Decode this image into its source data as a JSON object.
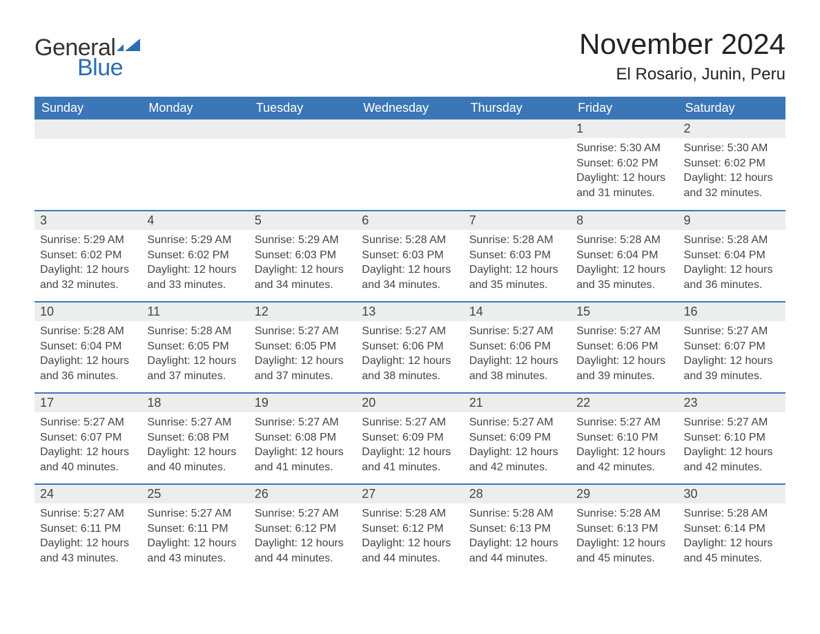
{
  "brand": {
    "part1": "General",
    "part2": "Blue",
    "flag_color": "#2a6db5",
    "text_color": "#333333"
  },
  "title": "November 2024",
  "location": "El Rosario, Junin, Peru",
  "colors": {
    "header_bg": "#3b77b7",
    "header_text": "#ffffff",
    "daybar_bg": "#eceeee",
    "body_text": "#444444",
    "row_border": "#3b77b7",
    "page_bg": "#ffffff"
  },
  "fonts": {
    "title_size": 42,
    "location_size": 24,
    "header_size": 18,
    "body_size": 16
  },
  "day_headers": [
    "Sunday",
    "Monday",
    "Tuesday",
    "Wednesday",
    "Thursday",
    "Friday",
    "Saturday"
  ],
  "labels": {
    "sunrise": "Sunrise:",
    "sunset": "Sunset:",
    "daylight_prefix": "Daylight:"
  },
  "weeks": [
    [
      null,
      null,
      null,
      null,
      null,
      {
        "n": "1",
        "sunrise": "5:30 AM",
        "sunset": "6:02 PM",
        "daylight": "12 hours and 31 minutes."
      },
      {
        "n": "2",
        "sunrise": "5:30 AM",
        "sunset": "6:02 PM",
        "daylight": "12 hours and 32 minutes."
      }
    ],
    [
      {
        "n": "3",
        "sunrise": "5:29 AM",
        "sunset": "6:02 PM",
        "daylight": "12 hours and 32 minutes."
      },
      {
        "n": "4",
        "sunrise": "5:29 AM",
        "sunset": "6:02 PM",
        "daylight": "12 hours and 33 minutes."
      },
      {
        "n": "5",
        "sunrise": "5:29 AM",
        "sunset": "6:03 PM",
        "daylight": "12 hours and 34 minutes."
      },
      {
        "n": "6",
        "sunrise": "5:28 AM",
        "sunset": "6:03 PM",
        "daylight": "12 hours and 34 minutes."
      },
      {
        "n": "7",
        "sunrise": "5:28 AM",
        "sunset": "6:03 PM",
        "daylight": "12 hours and 35 minutes."
      },
      {
        "n": "8",
        "sunrise": "5:28 AM",
        "sunset": "6:04 PM",
        "daylight": "12 hours and 35 minutes."
      },
      {
        "n": "9",
        "sunrise": "5:28 AM",
        "sunset": "6:04 PM",
        "daylight": "12 hours and 36 minutes."
      }
    ],
    [
      {
        "n": "10",
        "sunrise": "5:28 AM",
        "sunset": "6:04 PM",
        "daylight": "12 hours and 36 minutes."
      },
      {
        "n": "11",
        "sunrise": "5:28 AM",
        "sunset": "6:05 PM",
        "daylight": "12 hours and 37 minutes."
      },
      {
        "n": "12",
        "sunrise": "5:27 AM",
        "sunset": "6:05 PM",
        "daylight": "12 hours and 37 minutes."
      },
      {
        "n": "13",
        "sunrise": "5:27 AM",
        "sunset": "6:06 PM",
        "daylight": "12 hours and 38 minutes."
      },
      {
        "n": "14",
        "sunrise": "5:27 AM",
        "sunset": "6:06 PM",
        "daylight": "12 hours and 38 minutes."
      },
      {
        "n": "15",
        "sunrise": "5:27 AM",
        "sunset": "6:06 PM",
        "daylight": "12 hours and 39 minutes."
      },
      {
        "n": "16",
        "sunrise": "5:27 AM",
        "sunset": "6:07 PM",
        "daylight": "12 hours and 39 minutes."
      }
    ],
    [
      {
        "n": "17",
        "sunrise": "5:27 AM",
        "sunset": "6:07 PM",
        "daylight": "12 hours and 40 minutes."
      },
      {
        "n": "18",
        "sunrise": "5:27 AM",
        "sunset": "6:08 PM",
        "daylight": "12 hours and 40 minutes."
      },
      {
        "n": "19",
        "sunrise": "5:27 AM",
        "sunset": "6:08 PM",
        "daylight": "12 hours and 41 minutes."
      },
      {
        "n": "20",
        "sunrise": "5:27 AM",
        "sunset": "6:09 PM",
        "daylight": "12 hours and 41 minutes."
      },
      {
        "n": "21",
        "sunrise": "5:27 AM",
        "sunset": "6:09 PM",
        "daylight": "12 hours and 42 minutes."
      },
      {
        "n": "22",
        "sunrise": "5:27 AM",
        "sunset": "6:10 PM",
        "daylight": "12 hours and 42 minutes."
      },
      {
        "n": "23",
        "sunrise": "5:27 AM",
        "sunset": "6:10 PM",
        "daylight": "12 hours and 42 minutes."
      }
    ],
    [
      {
        "n": "24",
        "sunrise": "5:27 AM",
        "sunset": "6:11 PM",
        "daylight": "12 hours and 43 minutes."
      },
      {
        "n": "25",
        "sunrise": "5:27 AM",
        "sunset": "6:11 PM",
        "daylight": "12 hours and 43 minutes."
      },
      {
        "n": "26",
        "sunrise": "5:27 AM",
        "sunset": "6:12 PM",
        "daylight": "12 hours and 44 minutes."
      },
      {
        "n": "27",
        "sunrise": "5:28 AM",
        "sunset": "6:12 PM",
        "daylight": "12 hours and 44 minutes."
      },
      {
        "n": "28",
        "sunrise": "5:28 AM",
        "sunset": "6:13 PM",
        "daylight": "12 hours and 44 minutes."
      },
      {
        "n": "29",
        "sunrise": "5:28 AM",
        "sunset": "6:13 PM",
        "daylight": "12 hours and 45 minutes."
      },
      {
        "n": "30",
        "sunrise": "5:28 AM",
        "sunset": "6:14 PM",
        "daylight": "12 hours and 45 minutes."
      }
    ]
  ]
}
